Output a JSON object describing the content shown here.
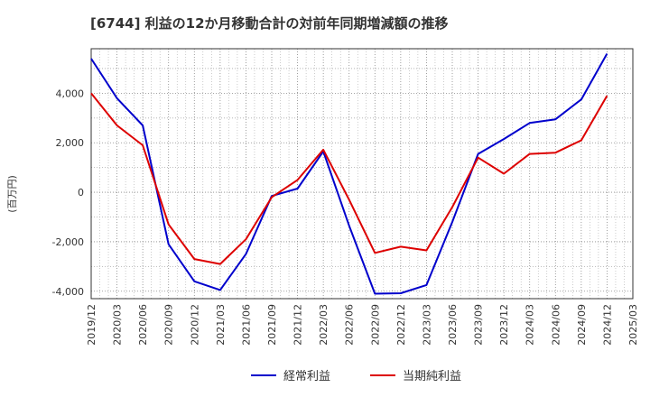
{
  "chart_data": {
    "type": "line",
    "title": "[6744]  利益の12か月移動合計の対前年同期増減額の推移",
    "ylabel": "(百万円)",
    "xlabel": "",
    "categories": [
      "2019/12",
      "2020/03",
      "2020/06",
      "2020/09",
      "2020/12",
      "2021/03",
      "2021/06",
      "2021/09",
      "2021/12",
      "2022/03",
      "2022/06",
      "2022/09",
      "2022/12",
      "2023/03",
      "2023/06",
      "2023/09",
      "2023/12",
      "2024/03",
      "2024/06",
      "2024/09",
      "2024/12",
      "2025/03"
    ],
    "yticks": [
      -4000,
      -2000,
      0,
      2000,
      4000
    ],
    "ytick_labels": [
      "-4,000",
      "-2,000",
      "0",
      "2,000",
      "4,000"
    ],
    "ylim": [
      -4300,
      5800
    ],
    "grid": true,
    "legend_position": "bottom",
    "series": [
      {
        "name": "経常利益",
        "color": "#0000cc",
        "values": [
          5400,
          3800,
          2700,
          -2100,
          -3600,
          -3950,
          -2500,
          -150,
          150,
          1650,
          -1350,
          -4100,
          -4080,
          -3750,
          -1200,
          1550,
          2150,
          2800,
          2950,
          3750,
          5600,
          null
        ]
      },
      {
        "name": "当期純利益",
        "color": "#dd0000",
        "values": [
          4000,
          2700,
          1900,
          -1300,
          -2700,
          -2900,
          -1900,
          -200,
          500,
          1720,
          -300,
          -2450,
          -2200,
          -2350,
          -600,
          1400,
          750,
          1550,
          1600,
          2100,
          3900,
          null
        ]
      }
    ]
  }
}
